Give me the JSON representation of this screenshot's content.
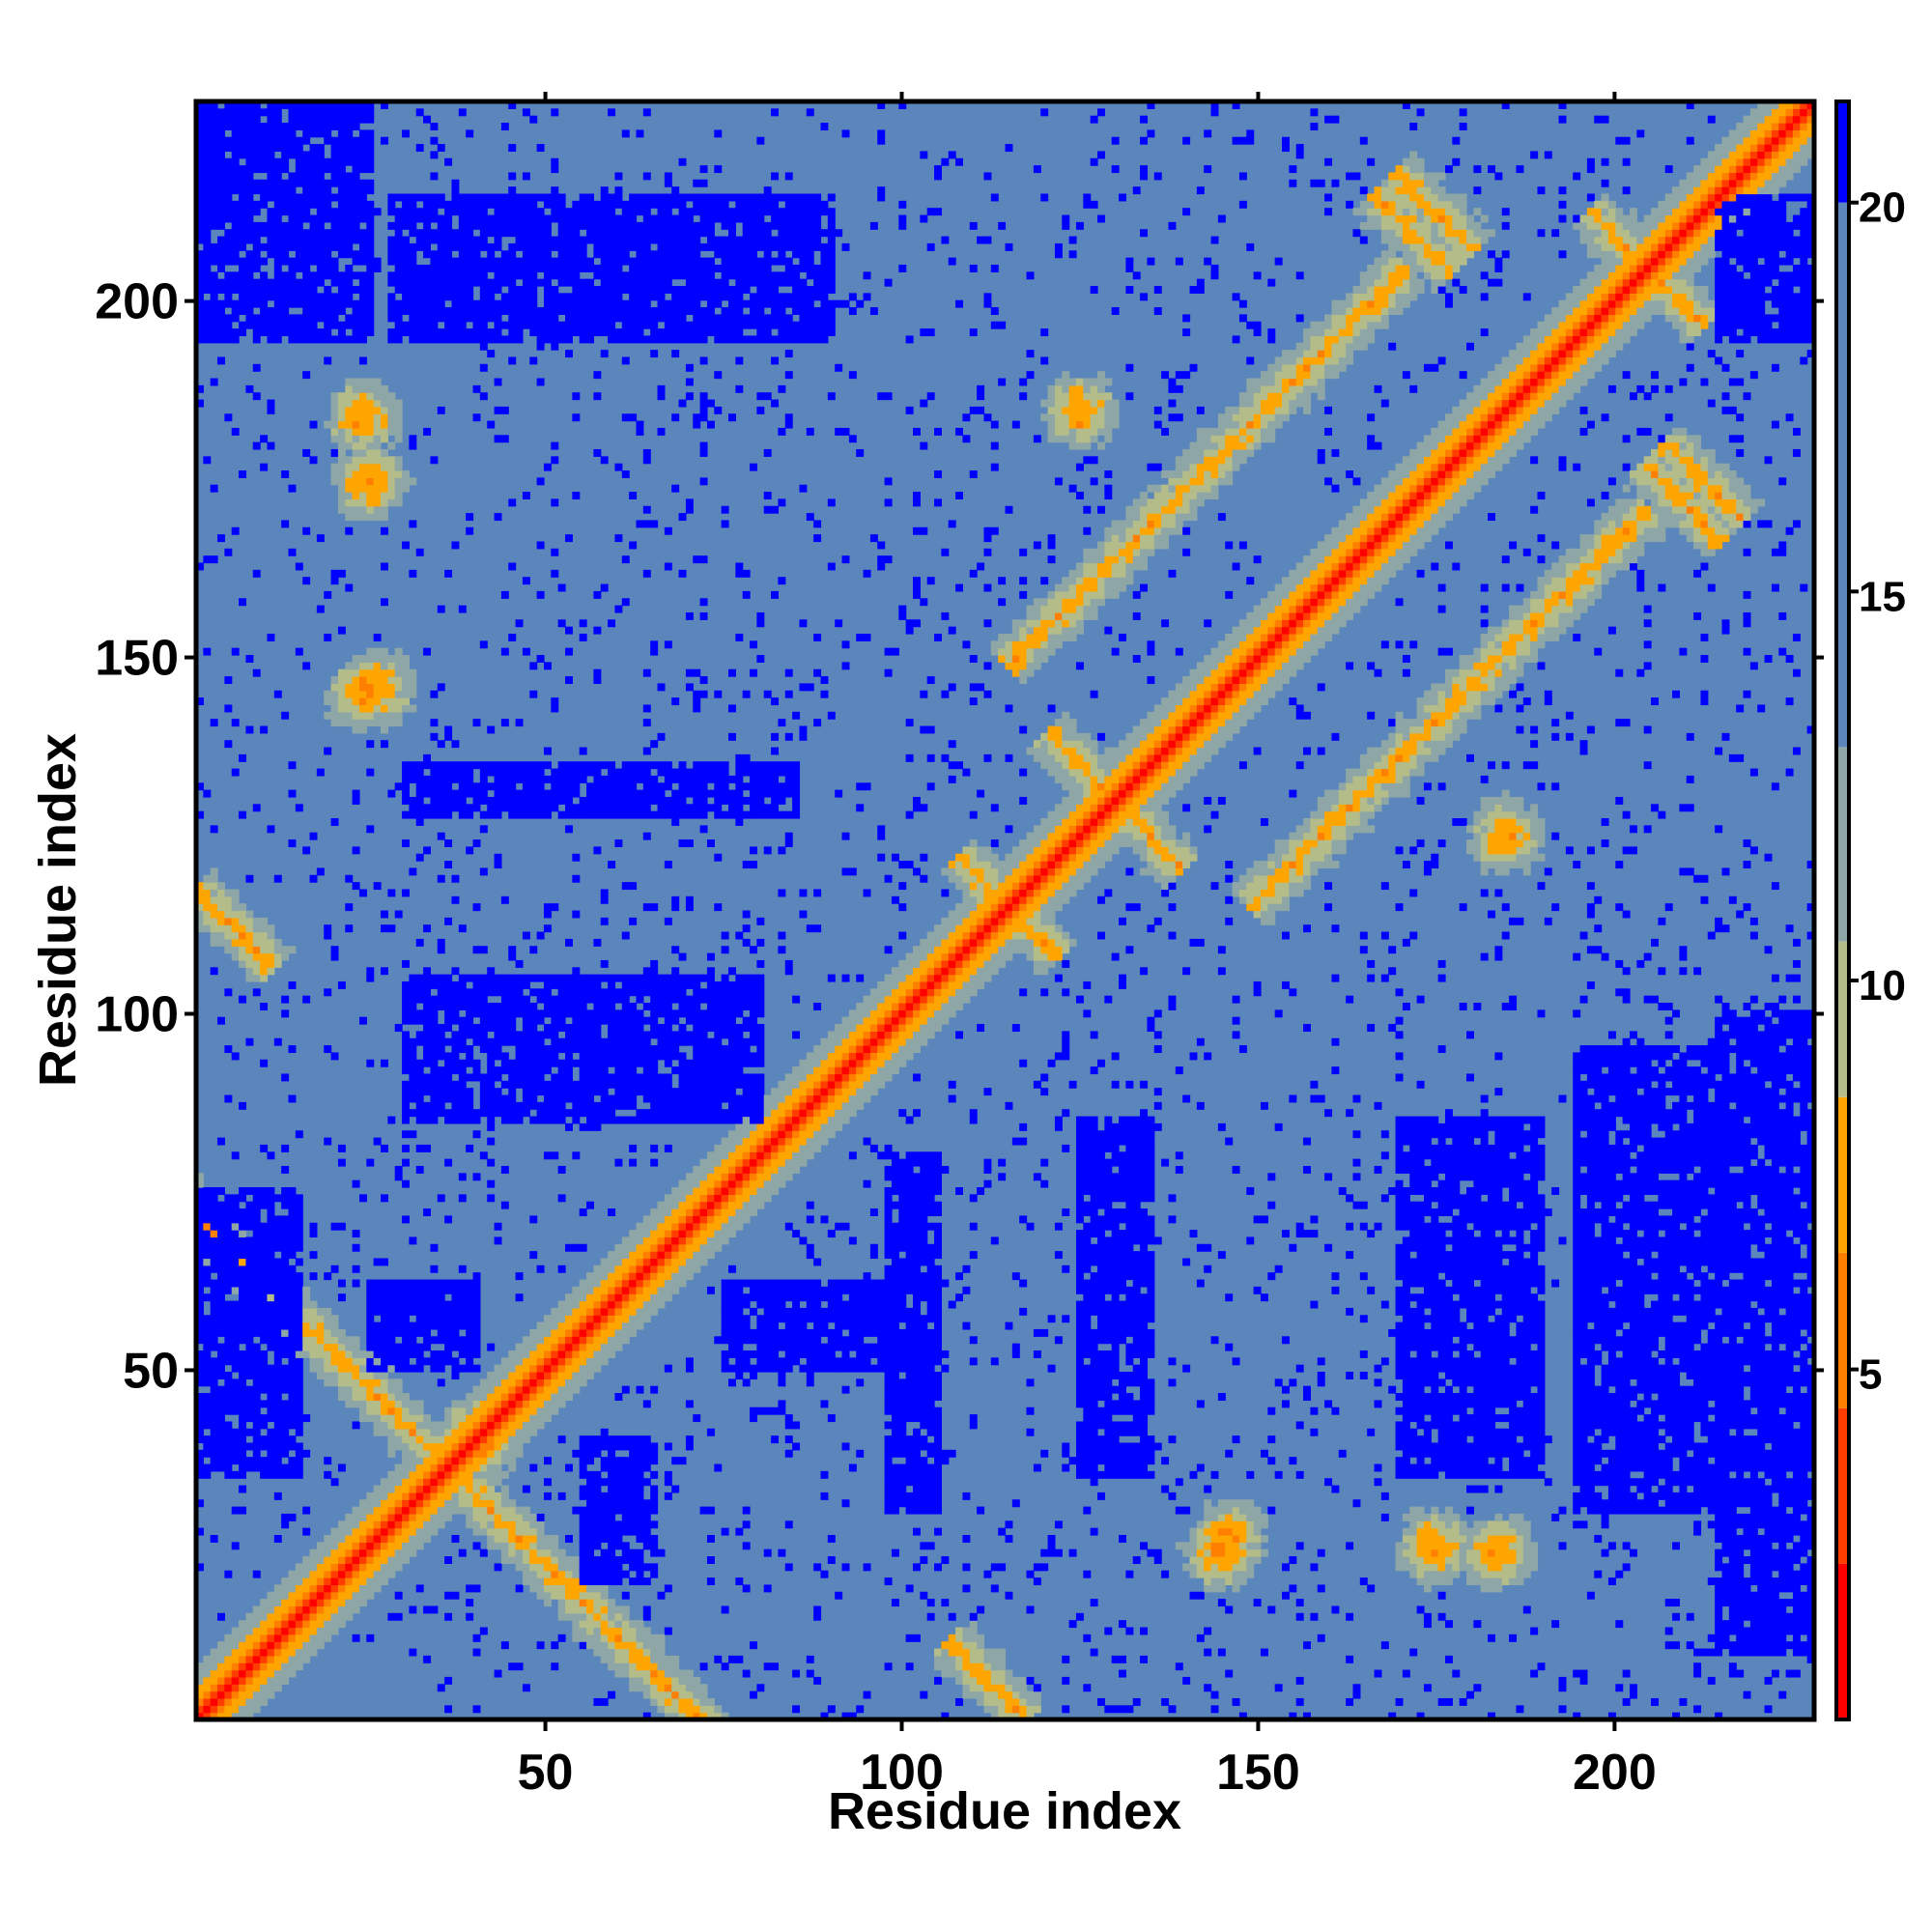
{
  "chart_data": {
    "type": "heatmap",
    "title": "",
    "xlabel": "Residue index",
    "ylabel": "Residue index",
    "xlim": [
      1,
      228
    ],
    "ylim": [
      1,
      228
    ],
    "x_ticks": [
      50,
      100,
      150,
      200
    ],
    "y_ticks": [
      50,
      100,
      150,
      200
    ],
    "colorbar": {
      "range": [
        0.5,
        21.3
      ],
      "ticks": [
        5,
        10,
        15,
        20
      ],
      "bands": [
        {
          "from": 0.5,
          "to": 2.5,
          "color": "#ff0000"
        },
        {
          "from": 2.5,
          "to": 4.5,
          "color": "#ff3d00"
        },
        {
          "from": 4.5,
          "to": 6.5,
          "color": "#ff8000"
        },
        {
          "from": 6.5,
          "to": 8.5,
          "color": "#ffa500"
        },
        {
          "from": 8.5,
          "to": 10.5,
          "color": "#b4bc8a"
        },
        {
          "from": 10.5,
          "to": 13.0,
          "color": "#8fa6a6"
        },
        {
          "from": 13.0,
          "to": 20.0,
          "color": "#5a86bb"
        },
        {
          "from": 20.0,
          "to": 21.3,
          "color": "#0000ff"
        }
      ]
    },
    "colors": {
      "far": "#0000ff",
      "background": "#5a86bb",
      "mid": "#b4bc8a",
      "near": "#ffa500",
      "close": "#ff8000",
      "diagonal": "#ff0000"
    },
    "structure": {
      "description_of_values": "symmetric residue-residue distance map in Angstrom",
      "helix_segments": [
        [
          4,
          24
        ],
        [
          25,
          60
        ],
        [
          61,
          100
        ],
        [
          106,
          128
        ],
        [
          129,
          148
        ],
        [
          150,
          178
        ],
        [
          180,
          228
        ]
      ],
      "contacts": [
        {
          "center": [
            115,
            115
          ],
          "type": "antidiagonal",
          "length": 10
        },
        {
          "center": [
            130,
            130
          ],
          "type": "antidiagonal",
          "length": 14
        },
        {
          "center": [
            205,
            205
          ],
          "type": "antidiagonal",
          "length": 12
        },
        {
          "center": [
            12,
            60
          ],
          "type": "antidiagonal",
          "length": 40
        },
        {
          "center": [
            112,
            6
          ],
          "type": "antidiagonal",
          "length": 8
        },
        {
          "center": [
            175,
            213
          ],
          "type": "antidiagonal",
          "length": 8
        },
        {
          "center": [
            210,
            172
          ],
          "type": "antidiagonal",
          "length": 8
        },
        {
          "center": [
            143,
            177
          ],
          "type": "parallel",
          "length": 40
        },
        {
          "center": [
            40,
            40
          ],
          "type": "blob",
          "radius": 8
        },
        {
          "center": [
            26,
            146
          ],
          "type": "blob",
          "radius": 6
        },
        {
          "center": [
            24,
            184
          ],
          "type": "blob",
          "radius": 6
        },
        {
          "center": [
            175,
            25
          ],
          "type": "blob",
          "radius": 6
        },
        {
          "center": [
            145,
            24
          ],
          "type": "blob",
          "radius": 6
        },
        {
          "center": [
            185,
            125
          ],
          "type": "blob",
          "radius": 6
        }
      ],
      "far_regions": [
        {
          "x": [
            28,
            90
          ],
          "y": [
            195,
            215
          ]
        },
        {
          "x": [
            30,
            85
          ],
          "y": [
            128,
            135
          ]
        },
        {
          "x": [
            30,
            80
          ],
          "y": [
            85,
            105
          ]
        },
        {
          "x": [
            25,
            40
          ],
          "y": [
            50,
            62
          ]
        },
        {
          "x": [
            75,
            100
          ],
          "y": [
            50,
            62
          ]
        },
        {
          "x": [
            98,
            105
          ],
          "y": [
            30,
            80
          ]
        },
        {
          "x": [
            125,
            135
          ],
          "y": [
            35,
            85
          ]
        },
        {
          "x": [
            170,
            190
          ],
          "y": [
            35,
            85
          ]
        },
        {
          "x": [
            195,
            215
          ],
          "y": [
            30,
            95
          ]
        },
        {
          "x": [
            215,
            228
          ],
          "y": [
            10,
            100
          ]
        },
        {
          "x": [
            1,
            15
          ],
          "y": [
            35,
            75
          ]
        },
        {
          "x": [
            55,
            65
          ],
          "y": [
            20,
            40
          ]
        },
        {
          "x": [
            1,
            25
          ],
          "y": [
            195,
            228
          ]
        },
        {
          "x": [
            215,
            228
          ],
          "y": [
            195,
            215
          ]
        }
      ]
    }
  }
}
